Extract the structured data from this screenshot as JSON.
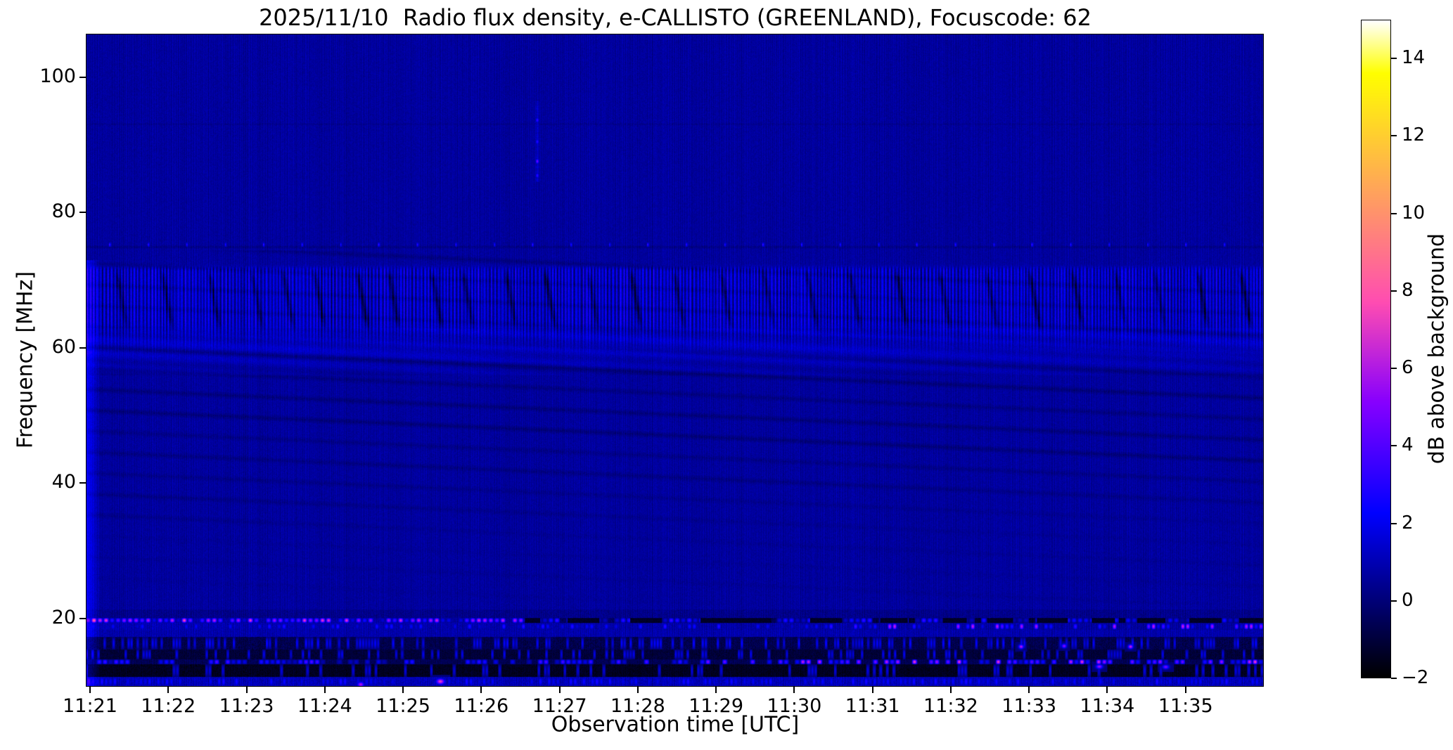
{
  "chart_data": {
    "type": "heatmap",
    "title": "2025/11/10  Radio flux density, e-CALLISTO (GREENLAND), Focuscode: 62",
    "observation": {
      "date": "2025/11/10",
      "instrument": "e-CALLISTO",
      "station": "GREENLAND",
      "focuscode": "62"
    },
    "xlabel": "Observation time [UTC]",
    "ylabel": "Frequency [MHz]",
    "colorbar_label": "dB above background",
    "colormap": "gnuplot2",
    "value_range_db": [
      -2,
      15
    ],
    "colorbar_ticks": [
      14,
      12,
      10,
      8,
      6,
      4,
      2,
      0,
      -2
    ],
    "colorbar_tick_labels": [
      "14",
      "12",
      "10",
      "8",
      "6",
      "4",
      "2",
      "0",
      "−2"
    ],
    "time_axis": {
      "tick_labels": [
        "11:21",
        "11:22",
        "11:23",
        "11:24",
        "11:25",
        "11:26",
        "11:27",
        "11:28",
        "11:29",
        "11:30",
        "11:31",
        "11:32",
        "11:33",
        "11:34",
        "11:35"
      ],
      "left_min": -0.054,
      "right_min": 15.0
    },
    "freq_axis": {
      "ticks": [
        100,
        80,
        60,
        40,
        20
      ],
      "top_mhz": 106.44,
      "bottom_mhz": 9.92
    },
    "colors": {
      "background_navy": "#0000A0",
      "stripe_blue": "#0000FF",
      "rfi_pink": "#E038C8",
      "band_black": "#000010",
      "colorbar_top": "#FFFFF4",
      "figure_bg": "#FFFFFF",
      "axis_color": "#000000"
    },
    "features": {
      "base_noise": {
        "base_db": 0.62,
        "col_amp_db": 0.42,
        "pixel_noise_db": 0.55
      },
      "diagonal_rfi_lines": {
        "slope_mhz_per_min": -0.5,
        "f0_start_mhz": 26,
        "f0_step_mhz": 3.1,
        "count": 17,
        "f_min_mhz": 22,
        "f_max_mhz": 74.5,
        "max_depth_db": 0.65
      },
      "interference_band": {
        "f_low_mhz": 56,
        "f_high_mhz": 72.5,
        "lift_db": 0.55,
        "stripe_amp_db": 1.5
      },
      "dark_streaks": {
        "times_min": [
          0.32,
          0.9,
          1.5,
          2.05,
          2.45,
          2.85,
          3.4,
          3.8,
          4.35,
          4.75,
          5.3,
          5.8,
          6.35,
          6.9,
          7.45,
          8.05,
          8.6,
          9.15,
          9.7,
          10.3,
          10.85,
          11.45,
          12.0,
          12.55,
          13.1,
          13.6,
          14.15,
          14.7
        ],
        "tilt_min_per_mhz": 0.016,
        "depth_db": 1.1
      },
      "line_75mhz": {
        "f_mhz": 75.0,
        "depth_db": 0.45,
        "dot_f_mhz": 75.35,
        "dot_period_s": 29.5,
        "dot_phase_s": 14,
        "dot_db": 3.2
      },
      "faint_line_93mhz": {
        "f_mhz": 93.2,
        "depth_db": 0.3
      },
      "vertical_streak": {
        "t_min": 5.71,
        "f_low_mhz": 84.7,
        "f_high_mhz": 96.6,
        "boost_db": 0.9,
        "dots": [
          {
            "f_mhz": 93.8,
            "db": 3.4
          },
          {
            "f_mhz": 90.6,
            "db": 3.2
          },
          {
            "f_mhz": 87.7,
            "db": 4.8
          },
          {
            "f_mhz": 85.6,
            "db": 3.4
          }
        ]
      },
      "left_edge_smear": {
        "t_width_min": 0.12,
        "boost_db": 1.2,
        "f_max_mhz": 73
      },
      "bottom_bands": [
        {
          "name": "rfi-line-19.7",
          "f_low": 19.3,
          "f_high": 20.1,
          "col_amp_db": 0.4,
          "noise_db": 0.8,
          "base_envelope": [
            [
              0,
              0.8
            ],
            [
              5.4,
              0.6
            ],
            [
              6.0,
              -0.4
            ],
            [
              9.9,
              -0.6
            ],
            [
              10.4,
              -1.2
            ],
            [
              15.1,
              -1.3
            ]
          ],
          "blob_rate_per_min": 13,
          "blob_density": 0.85,
          "blob_max_db": 7.8,
          "seed": 11,
          "envelope": [
            [
              0,
              1
            ],
            [
              5.4,
              0.9
            ],
            [
              6.0,
              0.5
            ],
            [
              10,
              0.45
            ],
            [
              15.1,
              0.4
            ]
          ],
          "dark_gaps": [
            [
              5.55,
              5.75
            ],
            [
              6.1,
              6.5
            ],
            [
              6.9,
              7.3
            ],
            [
              7.8,
              8.7
            ],
            [
              9.2,
              9.6
            ],
            [
              10.1,
              10.45
            ],
            [
              10.9,
              11.2
            ],
            [
              11.5,
              11.8
            ],
            [
              12.1,
              12.5
            ],
            [
              12.8,
              13.1
            ],
            [
              13.4,
              13.75
            ],
            [
              14.05,
              14.4
            ],
            [
              14.7,
              15.1
            ]
          ]
        },
        {
          "name": "line-18.7",
          "f_low": 18.3,
          "f_high": 19.3,
          "col_amp_db": 0.5,
          "noise_db": 0.7,
          "base_envelope": [
            [
              0,
              1.0
            ],
            [
              6,
              0.8
            ],
            [
              15.1,
              0.6
            ]
          ],
          "blob_rate_per_min": 16,
          "blob_density": 0.45,
          "blob_max_db": 7.0,
          "seed": 12,
          "envelope": [
            [
              0,
              0.42
            ],
            [
              9.6,
              0.5
            ],
            [
              10.3,
              0.95
            ],
            [
              15.1,
              0.95
            ]
          ]
        },
        {
          "name": "band-17-18",
          "f_low": 17.2,
          "f_high": 18.3,
          "base_db": 0.85,
          "col_amp_db": 0.5,
          "noise_db": 0.7,
          "seed": 13
        },
        {
          "name": "band-20-21",
          "f_low": 20.1,
          "f_high": 21.3,
          "base_db": 0.3,
          "col_amp_db": 0.4,
          "noise_db": 0.7,
          "seed": 19
        },
        {
          "name": "dark-15-17",
          "f_low": 15.4,
          "f_high": 17.2,
          "base_db": -0.7,
          "col_amp_db": 0.25,
          "noise_db": 0.9,
          "blob_rate_per_min": 26,
          "blob_density": 0.35,
          "blob_max_db": 2.6,
          "seed": 14
        },
        {
          "name": "dark-14-15",
          "f_low": 13.95,
          "f_high": 15.4,
          "base_db": -1.05,
          "col_amp_db": 0.2,
          "noise_db": 0.7,
          "blob_rate_per_min": 26,
          "blob_density": 0.25,
          "blob_max_db": 2.1,
          "seed": 15
        },
        {
          "name": "rfi-line-13.5",
          "f_low": 13.15,
          "f_high": 13.95,
          "base_db": -0.6,
          "col_amp_db": 0.3,
          "noise_db": 0.7,
          "blob_rate_per_min": 14,
          "blob_density": 0.6,
          "blob_max_db": 7.4,
          "seed": 16,
          "envelope": [
            [
              0,
              0.55
            ],
            [
              6,
              0.6
            ],
            [
              8,
              0.8
            ],
            [
              10,
              1
            ],
            [
              15.1,
              1
            ]
          ]
        },
        {
          "name": "black-12-13",
          "f_low": 11.35,
          "f_high": 13.15,
          "base_db": -1.45,
          "col_amp_db": 0.2,
          "noise_db": 0.7,
          "blob_rate_per_min": 24,
          "blob_density": 0.2,
          "blob_max_db": 1.8,
          "seed": 17
        },
        {
          "name": "band-10-11",
          "f_low": 9.9,
          "f_high": 11.35,
          "base_db": 1.05,
          "col_amp_db": 0.5,
          "noise_db": 1.0,
          "blob_rate_per_min": 18,
          "blob_density": 0.5,
          "blob_max_db": 3.0,
          "seed": 18
        }
      ],
      "point_blobs": [
        {
          "t_min": 4.47,
          "f_mhz": 10.65,
          "db": 7.2,
          "rt_min": 0.05,
          "rf_mhz": 0.4
        },
        {
          "t_min": 3.45,
          "f_mhz": 10.2,
          "db": 6.0,
          "rt_min": 0.04,
          "rf_mhz": 0.35
        },
        {
          "t_min": 12.9,
          "f_mhz": 12.85,
          "db": 5.6,
          "rt_min": 0.04,
          "rf_mhz": 0.3
        },
        {
          "t_min": 13.75,
          "f_mhz": 12.8,
          "db": 4.8,
          "rt_min": 0.04,
          "rf_mhz": 0.3
        },
        {
          "t_min": 11.9,
          "f_mhz": 15.8,
          "db": 6.2,
          "rt_min": 0.03,
          "rf_mhz": 0.3
        },
        {
          "t_min": 12.45,
          "f_mhz": 15.9,
          "db": 5.2,
          "rt_min": 0.03,
          "rf_mhz": 0.3
        },
        {
          "t_min": 13.3,
          "f_mhz": 15.8,
          "db": 6.5,
          "rt_min": 0.03,
          "rf_mhz": 0.3
        }
      ]
    }
  }
}
